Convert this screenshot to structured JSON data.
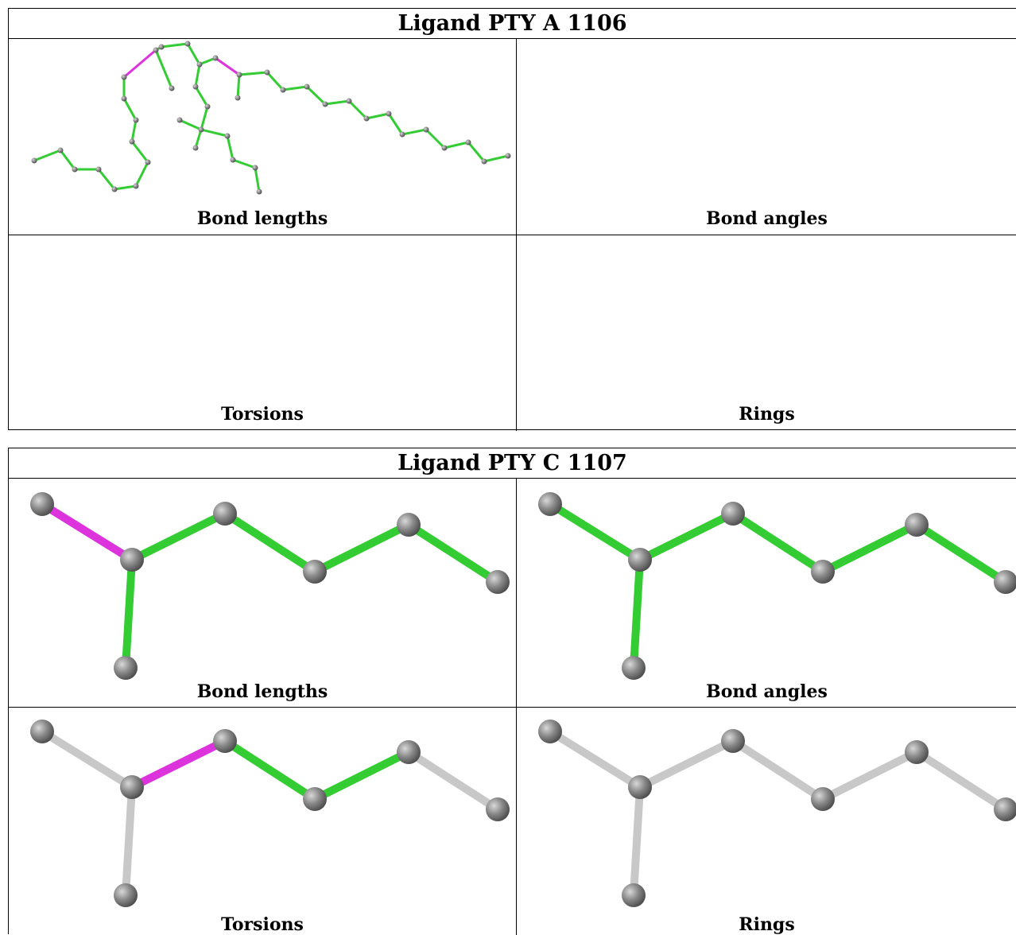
{
  "colors": {
    "ok": "#33cc33",
    "outlier": "#dd33dd",
    "none": "#c8c8c8",
    "atom": "#808080"
  },
  "tables": [
    {
      "title": "Ligand PTY A 1106",
      "panels": [
        {
          "caption": "Bond lengths"
        },
        {
          "caption": "Bond angles"
        },
        {
          "caption": "Torsions"
        },
        {
          "caption": "Rings"
        }
      ]
    },
    {
      "title": "Ligand PTY C 1107",
      "panels": [
        {
          "caption": "Bond lengths"
        },
        {
          "caption": "Bond angles"
        },
        {
          "caption": "Torsions"
        },
        {
          "caption": "Rings"
        }
      ]
    }
  ]
}
